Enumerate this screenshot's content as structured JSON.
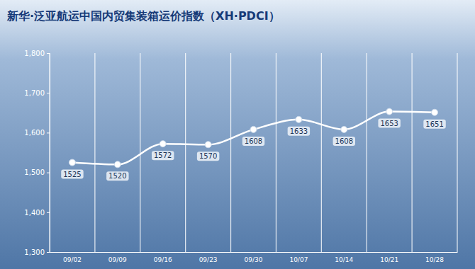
{
  "chart_data": {
    "type": "line",
    "title": "新华·泛亚航运中国内贸集装箱运价指数（XH·PDCI）",
    "categories": [
      "09/02",
      "09/09",
      "09/16",
      "09/23",
      "09/30",
      "10/07",
      "10/14",
      "10/21",
      "10/28"
    ],
    "values": [
      1525,
      1520,
      1572,
      1570,
      1608,
      1633,
      1608,
      1653,
      1651
    ],
    "color": "#ffffff",
    "marker": "circle",
    "ylim": [
      1300,
      1800
    ],
    "yticks": [
      {
        "value": 1300,
        "label": "1,300"
      },
      {
        "value": 1400,
        "label": "1,400"
      },
      {
        "value": 1500,
        "label": "1,500"
      },
      {
        "value": 1600,
        "label": "1,600"
      },
      {
        "value": 1700,
        "label": "1,700"
      },
      {
        "value": 1800,
        "label": "1,800"
      }
    ],
    "grid": true,
    "data_labels": true
  }
}
